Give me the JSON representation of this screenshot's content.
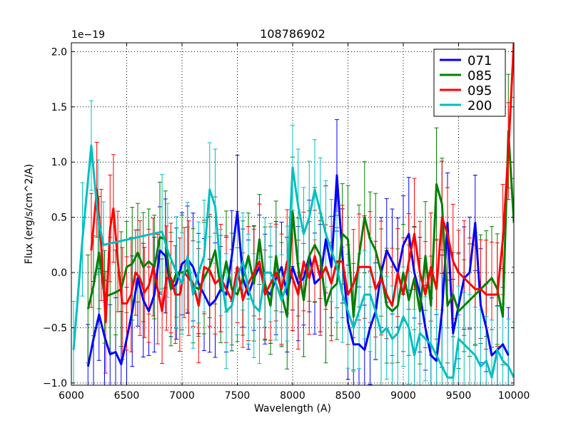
{
  "chart_data": {
    "type": "line",
    "title": "108786902",
    "xlabel": "Wavelength (A)",
    "ylabel": "Flux (erg/s/cm^2/A)",
    "offset_label": "1e−19",
    "xlim": [
      6000,
      10000
    ],
    "ylim": [
      -1.02,
      2.08
    ],
    "xticks": [
      6000,
      6500,
      7000,
      7500,
      8000,
      8500,
      9000,
      9500,
      10000
    ],
    "xtick_labels": [
      "6000",
      "6500",
      "7000",
      "7500",
      "8000",
      "8500",
      "9000",
      "9500",
      "10000"
    ],
    "yticks": [
      -1.0,
      -0.5,
      0.0,
      0.5,
      1.0,
      1.5,
      2.0
    ],
    "ytick_labels": [
      "−1.0",
      "−0.5",
      "0.0",
      "0.5",
      "1.0",
      "1.5",
      "2.0"
    ],
    "grid": true,
    "legend_position": "top-right",
    "series": [
      {
        "name": "071",
        "color": "#0000ff",
        "x": [
          6150,
          6200,
          6250,
          6300,
          6350,
          6400,
          6450,
          6500,
          6550,
          6600,
          6650,
          6700,
          6750,
          6800,
          6850,
          6900,
          6950,
          7000,
          7050,
          7100,
          7150,
          7200,
          7250,
          7300,
          7350,
          7400,
          7450,
          7500,
          7550,
          7600,
          7650,
          7700,
          7750,
          7800,
          7850,
          7900,
          7950,
          8000,
          8050,
          8100,
          8150,
          8200,
          8250,
          8300,
          8350,
          8400,
          8450,
          8500,
          8550,
          8600,
          8650,
          8700,
          8750,
          8800,
          8850,
          8900,
          8950,
          9000,
          9050,
          9100,
          9150,
          9200,
          9250,
          9300,
          9350,
          9400,
          9450,
          9500,
          9550,
          9600,
          9650,
          9700,
          9750,
          9800,
          9850,
          9900,
          9950
        ],
        "y": [
          -0.85,
          -0.6,
          -0.38,
          -0.58,
          -0.74,
          -0.72,
          -0.83,
          -0.6,
          -0.35,
          -0.05,
          -0.25,
          -0.35,
          -0.2,
          0.2,
          0.15,
          -0.15,
          -0.1,
          0.08,
          0.12,
          0.05,
          -0.1,
          -0.2,
          -0.3,
          -0.25,
          -0.15,
          -0.2,
          0.15,
          0.55,
          -0.05,
          -0.2,
          -0.05,
          0.05,
          -0.15,
          -0.2,
          -0.05,
          0.05,
          -0.2,
          0.05,
          -0.1,
          -0.05,
          0.15,
          -0.1,
          -0.05,
          0.3,
          0.05,
          0.88,
          0.15,
          -0.45,
          -0.65,
          -0.65,
          -0.7,
          -0.5,
          -0.35,
          0.0,
          0.2,
          0.1,
          0.0,
          0.25,
          0.35,
          0.0,
          -0.2,
          -0.5,
          -0.75,
          -0.8,
          -0.35,
          0.45,
          -0.55,
          -0.3,
          -0.05,
          0.0,
          0.45,
          -0.3,
          -0.5,
          -0.75,
          -0.7,
          -0.65,
          -0.75
        ]
      },
      {
        "name": "085",
        "color": "#008000",
        "x": [
          6150,
          6200,
          6250,
          6300,
          6350,
          6400,
          6450,
          6500,
          6550,
          6600,
          6650,
          6700,
          6750,
          6800,
          6850,
          6900,
          6950,
          7000,
          7050,
          7100,
          7150,
          7200,
          7250,
          7300,
          7350,
          7400,
          7450,
          7500,
          7550,
          7600,
          7650,
          7700,
          7750,
          7800,
          7850,
          7900,
          7950,
          8000,
          8050,
          8100,
          8150,
          8200,
          8250,
          8300,
          8350,
          8400,
          8450,
          8500,
          8550,
          8600,
          8650,
          8700,
          8750,
          8800,
          8850,
          8900,
          8950,
          9000,
          9050,
          9100,
          9150,
          9200,
          9250,
          9300,
          9350,
          9400,
          9450,
          9500,
          9550,
          9600,
          9650,
          9700,
          9750,
          9800,
          9850,
          9900,
          9950,
          10000
        ],
        "y": [
          -0.33,
          -0.12,
          0.18,
          -0.22,
          -0.2,
          -0.18,
          -0.15,
          0.05,
          0.08,
          0.18,
          0.05,
          0.1,
          0.05,
          0.32,
          0.3,
          -0.15,
          0.0,
          0.0,
          0.02,
          -0.12,
          -0.15,
          -0.05,
          0.05,
          0.2,
          -0.15,
          0.1,
          -0.15,
          -0.2,
          -0.05,
          0.15,
          -0.1,
          0.3,
          -0.1,
          -0.3,
          0.15,
          -0.2,
          -0.4,
          0.55,
          0.05,
          -0.25,
          0.15,
          0.25,
          0.15,
          -0.3,
          -0.15,
          -0.1,
          0.35,
          0.3,
          -0.4,
          0.15,
          0.5,
          0.3,
          0.2,
          0.0,
          -0.3,
          -0.35,
          -0.3,
          0.0,
          -0.25,
          -0.05,
          -0.35,
          0.15,
          -0.3,
          0.8,
          0.62,
          -0.3,
          -0.2,
          -0.35,
          -0.3,
          -0.25,
          -0.2,
          -0.15,
          -0.1,
          -0.05,
          -0.15,
          -0.4,
          1.28,
          0.45
        ]
      },
      {
        "name": "095",
        "color": "#ff0000",
        "x": [
          6180,
          6230,
          6270,
          6310,
          6350,
          6380,
          6420,
          6460,
          6500,
          6540,
          6580,
          6620,
          6660,
          6700,
          6740,
          6780,
          6820,
          6860,
          6900,
          6940,
          6980,
          7020,
          7060,
          7100,
          7150,
          7200,
          7250,
          7300,
          7350,
          7400,
          7450,
          7500,
          7550,
          7600,
          7650,
          7700,
          7750,
          7800,
          7850,
          7900,
          7950,
          8000,
          8050,
          8100,
          8150,
          8200,
          8250,
          8300,
          8350,
          8400,
          8450,
          8500,
          8550,
          8600,
          8650,
          8700,
          8750,
          8800,
          8850,
          8900,
          8950,
          9000,
          9050,
          9100,
          9150,
          9200,
          9250,
          9300,
          9350,
          9400,
          9450,
          9500,
          9550,
          9600,
          9650,
          9700,
          9750,
          9800,
          9850,
          9900,
          9950,
          10000
        ],
        "y": [
          0.2,
          0.75,
          0.25,
          -0.45,
          0.4,
          0.58,
          0.1,
          -0.28,
          -0.28,
          -0.2,
          0.0,
          -0.05,
          -0.18,
          -0.12,
          0.05,
          -0.15,
          -0.35,
          -0.05,
          -0.05,
          -0.2,
          -0.2,
          0.0,
          -0.05,
          -0.1,
          -0.3,
          0.05,
          0.02,
          -0.1,
          -0.05,
          -0.15,
          -0.25,
          0.05,
          -0.25,
          -0.1,
          0.0,
          0.1,
          -0.2,
          -0.1,
          0.0,
          -0.15,
          0.1,
          -0.05,
          -0.2,
          0.1,
          -0.05,
          0.15,
          -0.05,
          0.05,
          -0.1,
          0.1,
          0.1,
          -0.2,
          -0.1,
          0.05,
          0.05,
          0.05,
          -0.15,
          -0.05,
          -0.2,
          -0.3,
          0.0,
          -0.2,
          0.1,
          0.35,
          0.0,
          -0.2,
          0.05,
          -0.15,
          0.5,
          0.35,
          0.1,
          0.0,
          -0.05,
          -0.1,
          -0.15,
          -0.15,
          -0.2,
          -0.2,
          -0.2,
          0.3,
          1.1,
          2.1
        ]
      },
      {
        "name": "200",
        "color": "#00bfbf",
        "x": [
          6020,
          6100,
          6180,
          6240,
          6290,
          6820,
          6870,
          6950,
          7000,
          7050,
          7100,
          7150,
          7200,
          7250,
          7300,
          7350,
          7400,
          7450,
          7500,
          7550,
          7600,
          7650,
          7700,
          7750,
          7800,
          7850,
          7900,
          7950,
          8000,
          8050,
          8100,
          8150,
          8200,
          8250,
          8300,
          8350,
          8400,
          8450,
          8500,
          8550,
          8600,
          8650,
          8700,
          8750,
          8800,
          8850,
          8900,
          8950,
          9000,
          9050,
          9100,
          9150,
          9200,
          9250,
          9300,
          9350,
          9400,
          9450,
          9500,
          9550,
          9600,
          9650,
          9700,
          9750,
          9800,
          9850,
          9900,
          9950,
          10000
        ],
        "y": [
          -0.7,
          0.3,
          1.15,
          0.5,
          0.25,
          0.37,
          0.2,
          0.0,
          -0.1,
          0.15,
          -0.2,
          0.0,
          0.15,
          0.75,
          0.6,
          0.0,
          -0.35,
          -0.3,
          -0.05,
          0.1,
          -0.15,
          -0.3,
          -0.35,
          0.0,
          0.0,
          -0.1,
          -0.25,
          -0.1,
          0.95,
          0.6,
          0.35,
          0.5,
          0.75,
          0.55,
          0.35,
          0.2,
          0.05,
          -0.2,
          -0.35,
          -0.5,
          -0.35,
          -0.2,
          -0.2,
          -0.35,
          -0.55,
          -0.5,
          -0.6,
          -0.55,
          -0.4,
          -0.5,
          -0.75,
          -0.55,
          -0.6,
          -0.65,
          -0.75,
          -0.85,
          -0.95,
          -0.95,
          -0.6,
          -0.65,
          -0.7,
          -0.75,
          -0.85,
          -0.8,
          -0.95,
          -0.7,
          -0.8,
          -0.85,
          -0.95
        ]
      }
    ]
  }
}
